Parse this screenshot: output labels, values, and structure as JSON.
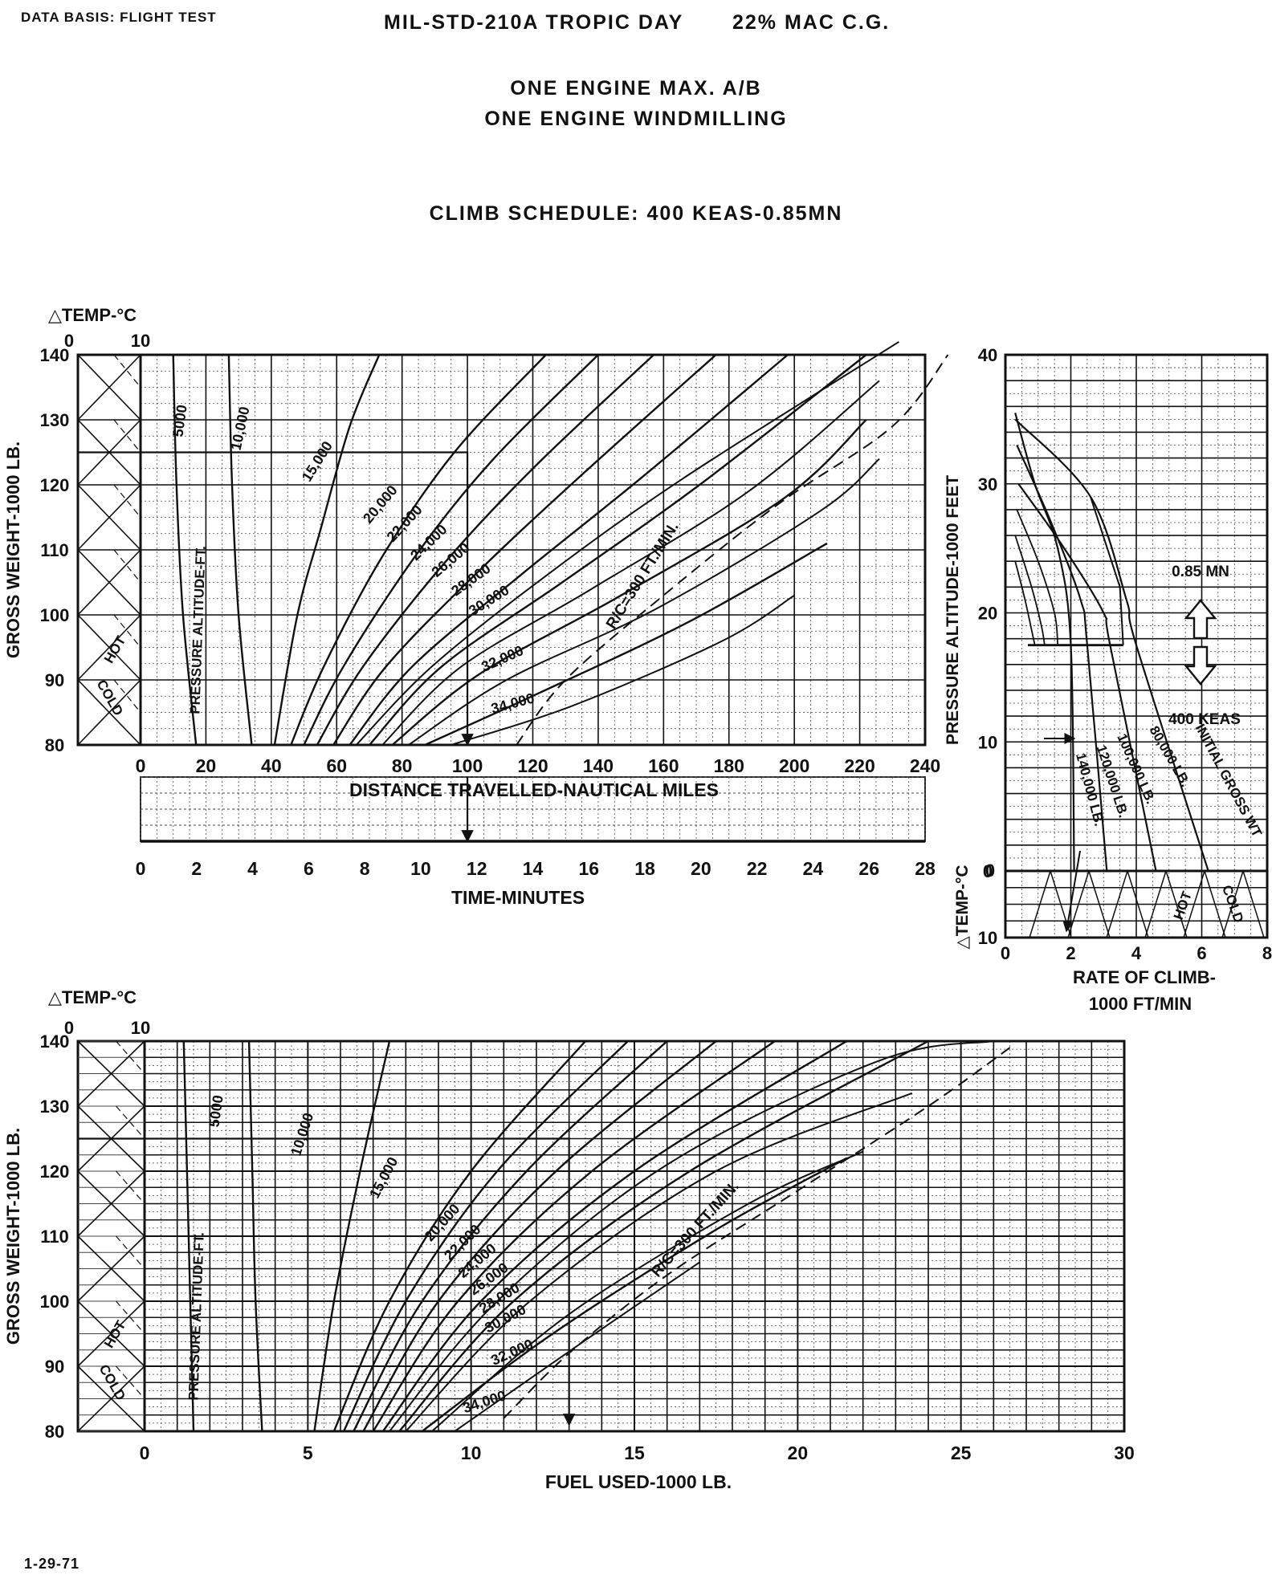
{
  "header": {
    "data_basis": "DATA BASIS: FLIGHT TEST",
    "standard": "MIL-STD-210A TROPIC DAY",
    "cg": "22% MAC C.G.",
    "config_line1": "ONE ENGINE MAX. A/B",
    "config_line2": "ONE ENGINE WINDMILLING",
    "climb_schedule": "CLIMB SCHEDULE: 400 KEAS-0.85MN"
  },
  "footer": {
    "date": "1-29-71"
  },
  "colors": {
    "ink": "#111111",
    "grid": "#444444",
    "paper": "#ffffff"
  },
  "chart_data": [
    {
      "id": "distance-time",
      "type": "line",
      "xlabel": "DISTANCE TRAVELLED-NAUTICAL MILES",
      "xlabel2": "TIME-MINUTES",
      "ylabel": "GROSS WEIGHT-1000 LB.",
      "temp_label": "△TEMP-°C",
      "temp_ticks": [
        "0",
        "10"
      ],
      "hot_label": "HOT",
      "cold_label": "COLD",
      "xlim": [
        0,
        240
      ],
      "x2lim": [
        0,
        28
      ],
      "ylim": [
        80,
        140
      ],
      "xticks": [
        "0",
        "20",
        "40",
        "60",
        "80",
        "100",
        "120",
        "140",
        "160",
        "180",
        "200",
        "220",
        "240"
      ],
      "x2ticks": [
        "0",
        "2",
        "4",
        "6",
        "8",
        "10",
        "12",
        "14",
        "16",
        "18",
        "20",
        "22",
        "24",
        "26",
        "28"
      ],
      "yticks": [
        "80",
        "90",
        "100",
        "110",
        "120",
        "130",
        "140"
      ],
      "family_label": "PRESSURE ALTITUDE-FT.",
      "rc_label": "R/C=300 FT./MIN.",
      "rc_line": {
        "x": [
          115,
          130,
          160,
          195,
          230,
          247
        ],
        "y": [
          80,
          90,
          103,
          117,
          129,
          140
        ]
      },
      "series": [
        {
          "name": "5000",
          "x": [
            17,
            13,
            11,
            10
          ],
          "y": [
            80,
            100,
            120,
            140
          ]
        },
        {
          "name": "10,000",
          "x": [
            34,
            30,
            28,
            27
          ],
          "y": [
            80,
            100,
            120,
            140
          ]
        },
        {
          "name": "15,000",
          "x": [
            41,
            48,
            55,
            64,
            73
          ],
          "y": [
            80,
            100,
            113,
            129,
            140
          ]
        },
        {
          "name": "20,000",
          "x": [
            46,
            56,
            74,
            96,
            124
          ],
          "y": [
            80,
            92,
            109,
            125,
            140
          ]
        },
        {
          "name": "22,000",
          "x": [
            50,
            62,
            84,
            108,
            140
          ],
          "y": [
            80,
            92,
            109,
            124,
            140
          ]
        },
        {
          "name": "24,000",
          "x": [
            54,
            68,
            93,
            121,
            157
          ],
          "y": [
            80,
            92,
            108,
            123,
            140
          ]
        },
        {
          "name": "26,000",
          "x": [
            59,
            75,
            104,
            136,
            176
          ],
          "y": [
            80,
            92,
            107,
            122,
            140
          ]
        },
        {
          "name": "28,000",
          "x": [
            64,
            83,
            116,
            153,
            198
          ],
          "y": [
            80,
            92,
            106,
            121,
            140
          ]
        },
        {
          "name": "30,000",
          "x": [
            70,
            92,
            129,
            171,
            222
          ],
          "y": [
            80,
            92,
            105,
            120,
            140
          ]
        },
        {
          "name": "32,000",
          "x": [
            77,
            104,
            147,
            197,
            222
          ],
          "y": [
            80,
            91,
            103,
            118,
            130
          ]
        },
        {
          "name": "34,000",
          "x": [
            87,
            122,
            168,
            210
          ],
          "y": [
            80,
            88,
            99,
            111
          ]
        }
      ],
      "series_extra": [
        {
          "x": [
            66,
            89,
            124,
            166,
            232
          ],
          "y": [
            80,
            92,
            106,
            121,
            142
          ]
        },
        {
          "x": [
            74,
            98,
            138,
            186,
            226
          ],
          "y": [
            80,
            92,
            104,
            119,
            136
          ]
        },
        {
          "x": [
            82,
            112,
            158,
            208,
            226
          ],
          "y": [
            80,
            90,
            101,
            116,
            124
          ]
        },
        {
          "x": [
            95,
            132,
            178,
            200
          ],
          "y": [
            80,
            86,
            96,
            103
          ]
        }
      ],
      "example_path": {
        "gross_weight": 125,
        "distance_nm": 100,
        "time_min": 12
      }
    },
    {
      "id": "rate-of-climb",
      "type": "line",
      "xlabel": "RATE OF CLIMB- 1000 FT/MIN",
      "xlabel_line1": "RATE OF CLIMB-",
      "xlabel_line2": "1000 FT/MIN",
      "ylabel": "PRESSURE ALTITUDE-1000 FEET",
      "temp_label": "△TEMP-°C",
      "hot_label": "HOT",
      "cold_label": "COLD",
      "xlim": [
        0,
        8
      ],
      "ylim": [
        0,
        40
      ],
      "xticks": [
        "0",
        "2",
        "4",
        "6",
        "8"
      ],
      "yticks": [
        "0",
        "10",
        "20",
        "30",
        "40"
      ],
      "temp_ticks": [
        "0",
        "10"
      ],
      "mn_label": "0.85 MN",
      "keas_label": "400 KEAS",
      "schedule_change_altitude": 17.5,
      "gross_wt_label": "INITIAL GROSS WT",
      "weight_labels": [
        "140,000 LB.",
        "120,000 LB.",
        "100,000 LB.",
        "80,000 LB."
      ],
      "series": [
        {
          "name": "140,000 LB.",
          "x": [
            0.3,
            0.9,
            1.6,
            2.0,
            2.1
          ],
          "y": [
            35.5,
            30,
            25,
            17.5,
            0
          ]
        },
        {
          "name": "120,000 LB.",
          "x": [
            0.35,
            1.4,
            2.3,
            2.5,
            3.1
          ],
          "y": [
            33,
            27,
            21,
            17.5,
            0
          ]
        },
        {
          "name": "100,000 LB.",
          "x": [
            0.4,
            1.8,
            3.0,
            3.2,
            4.6
          ],
          "y": [
            30,
            25,
            20,
            17.5,
            0
          ]
        },
        {
          "name": "80,000 LB.",
          "x": [
            0.3,
            2.6,
            3.7,
            4.0,
            6.2
          ],
          "y": [
            35,
            29,
            21,
            17.5,
            0
          ]
        }
      ],
      "series_extra": [
        {
          "x": [
            0.3,
            0.8,
            1.1,
            1.2
          ],
          "y": [
            26,
            22,
            19,
            17.5
          ]
        },
        {
          "x": [
            0.35,
            1.0,
            1.5,
            1.6
          ],
          "y": [
            28,
            24,
            20,
            17.5
          ]
        },
        {
          "x": [
            0.3,
            0.6,
            0.9
          ],
          "y": [
            24,
            21,
            17.5
          ]
        }
      ]
    },
    {
      "id": "fuel-used",
      "type": "line",
      "xlabel": "FUEL USED-1000 LB.",
      "ylabel": "GROSS WEIGHT-1000 LB.",
      "temp_label": "△TEMP-°C",
      "temp_ticks": [
        "0",
        "10"
      ],
      "hot_label": "HOT",
      "cold_label": "COLD",
      "xlim": [
        0,
        30
      ],
      "ylim": [
        80,
        140
      ],
      "xticks": [
        "0",
        "5",
        "10",
        "15",
        "20",
        "25",
        "30"
      ],
      "yticks": [
        "80",
        "90",
        "100",
        "110",
        "120",
        "130",
        "140"
      ],
      "family_label": "PRESSURE ALTITUDE-FT.",
      "rc_label": "R/C=300 FT./MIN.",
      "rc_line": {
        "x": [
          11,
          13,
          16,
          20,
          24,
          26.5
        ],
        "y": [
          82,
          92,
          104,
          117,
          130,
          139
        ]
      },
      "series": [
        {
          "name": "5000",
          "x": [
            1.5,
            1.4,
            1.3,
            1.2
          ],
          "y": [
            80,
            100,
            120,
            140
          ]
        },
        {
          "name": "10,000",
          "x": [
            3.6,
            3.4,
            3.3,
            3.2
          ],
          "y": [
            80,
            100,
            120,
            140
          ]
        },
        {
          "name": "15,000",
          "x": [
            5.2,
            5.8,
            6.6,
            7.5
          ],
          "y": [
            80,
            100,
            120,
            140
          ]
        },
        {
          "name": "20,000",
          "x": [
            5.8,
            7.5,
            10.0,
            13.5
          ],
          "y": [
            80,
            100,
            120,
            140
          ]
        },
        {
          "name": "22,000",
          "x": [
            6.1,
            8.0,
            10.8,
            14.8
          ],
          "y": [
            80,
            100,
            120,
            140
          ]
        },
        {
          "name": "24,000",
          "x": [
            6.4,
            8.5,
            11.7,
            16.0
          ],
          "y": [
            80,
            100,
            120,
            140
          ]
        },
        {
          "name": "26,000",
          "x": [
            6.7,
            9.0,
            12.6,
            17.5
          ],
          "y": [
            80,
            100,
            120,
            140
          ]
        },
        {
          "name": "28,000",
          "x": [
            7.0,
            9.6,
            13.7,
            19.3
          ],
          "y": [
            80,
            100,
            120,
            140
          ]
        },
        {
          "name": "30,000",
          "x": [
            7.3,
            10.3,
            15.0,
            21.5
          ],
          "y": [
            80,
            100,
            120,
            140
          ]
        },
        {
          "name": "32,000",
          "x": [
            7.8,
            11.3,
            16.7,
            24.0
          ],
          "y": [
            80,
            100,
            120,
            140
          ]
        },
        {
          "name": "34,000",
          "x": [
            8.5,
            12.5,
            17.5,
            21.5
          ],
          "y": [
            80,
            95,
            111,
            122
          ]
        }
      ],
      "series_extra": [
        {
          "x": [
            7.5,
            10.8,
            16.0,
            22.5,
            26.0
          ],
          "y": [
            80,
            100,
            121,
            137,
            140
          ]
        },
        {
          "x": [
            8.0,
            11.8,
            17.5,
            23.5
          ],
          "y": [
            80,
            100,
            120,
            132
          ]
        },
        {
          "x": [
            8.8,
            13.0,
            18.5,
            22.0
          ],
          "y": [
            80,
            98,
            115,
            123
          ]
        },
        {
          "x": [
            9.5,
            13.5,
            17.0
          ],
          "y": [
            80,
            94,
            106
          ]
        }
      ],
      "example_path": {
        "gross_weight": 125,
        "fuel_used": 13
      }
    }
  ]
}
